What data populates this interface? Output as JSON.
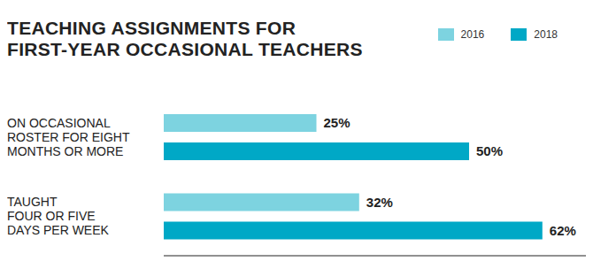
{
  "chart_data": {
    "type": "bar",
    "orientation": "horizontal",
    "title": "TEACHING ASSIGNMENTS FOR\nFIRST-YEAR OCCASIONAL TEACHERS",
    "categories": [
      "ON OCCASIONAL\nROSTER FOR EIGHT\nMONTHS OR MORE",
      "TAUGHT\nFOUR OR FIVE\nDAYS PER WEEK"
    ],
    "series": [
      {
        "name": "2016",
        "color": "#7dd3e0",
        "values": [
          25,
          32
        ],
        "value_labels": [
          "25%",
          "32%"
        ]
      },
      {
        "name": "2018",
        "color": "#00a8c6",
        "values": [
          50,
          62
        ],
        "value_labels": [
          "50%",
          "62%"
        ]
      }
    ],
    "xlim": [
      0,
      70
    ],
    "data_labels": true,
    "tick_labels": "y",
    "legend": "top-right"
  }
}
